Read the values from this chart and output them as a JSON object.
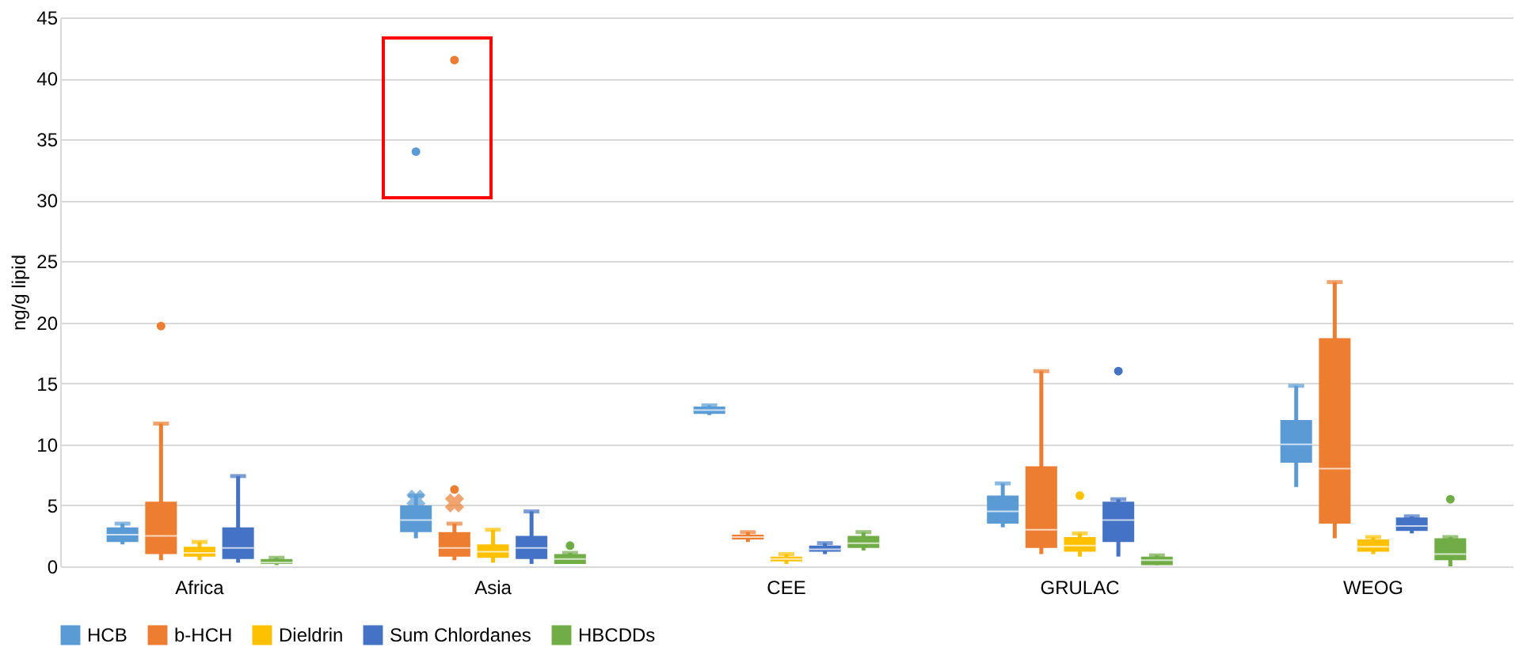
{
  "chart_data": {
    "type": "box",
    "ylabel": "ng/g lipid",
    "categories": [
      "Africa",
      "Asia",
      "CEE",
      "GRULAC",
      "WEOG"
    ],
    "ylim": [
      0,
      45
    ],
    "yticks": [
      0,
      5,
      10,
      15,
      20,
      25,
      30,
      35,
      40,
      45
    ],
    "grid": "y",
    "legend": "bottom",
    "series": [
      {
        "name": "HCB",
        "color": "#5b9bd5",
        "boxes": [
          {
            "low": 1.8,
            "q1": 2.0,
            "median": 2.6,
            "q3": 3.2,
            "high": 3.5
          },
          {
            "low": 2.3,
            "q1": 2.8,
            "median": 3.8,
            "q3": 5.0,
            "high": 5.8,
            "mean": 5.5,
            "outliers": [
              34
            ]
          },
          {
            "low": 12.4,
            "q1": 12.5,
            "median": 12.8,
            "q3": 13.1,
            "high": 13.2
          },
          {
            "low": 3.2,
            "q1": 3.5,
            "median": 4.5,
            "q3": 5.8,
            "high": 6.8
          },
          {
            "low": 6.5,
            "q1": 8.5,
            "median": 10,
            "q3": 12,
            "high": 14.8
          }
        ]
      },
      {
        "name": "b-HCH",
        "color": "#ed7d31",
        "boxes": [
          {
            "low": 0.5,
            "q1": 1.0,
            "median": 2.5,
            "q3": 5.3,
            "high": 11.7,
            "outliers": [
              19.7
            ]
          },
          {
            "low": 0.5,
            "q1": 0.8,
            "median": 1.5,
            "q3": 2.8,
            "high": 3.5,
            "mean": 5.2,
            "outliers": [
              6.3,
              41.5
            ]
          },
          {
            "low": 2.0,
            "q1": 2.2,
            "median": 2.4,
            "q3": 2.6,
            "high": 2.8
          },
          {
            "low": 1.0,
            "q1": 1.5,
            "median": 3.0,
            "q3": 8.2,
            "high": 16
          },
          {
            "low": 2.3,
            "q1": 3.5,
            "median": 8,
            "q3": 18.7,
            "high": 23.3
          }
        ]
      },
      {
        "name": "Dieldrin",
        "color": "#ffc000",
        "boxes": [
          {
            "low": 0.5,
            "q1": 0.8,
            "median": 1.1,
            "q3": 1.6,
            "high": 2.0
          },
          {
            "low": 0.3,
            "q1": 0.7,
            "median": 1.2,
            "q3": 1.8,
            "high": 3.0
          },
          {
            "low": 0.2,
            "q1": 0.4,
            "median": 0.6,
            "q3": 0.8,
            "high": 1.0
          },
          {
            "low": 0.8,
            "q1": 1.2,
            "median": 1.7,
            "q3": 2.4,
            "high": 2.7,
            "outliers": [
              5.8
            ]
          },
          {
            "low": 1.0,
            "q1": 1.2,
            "median": 1.6,
            "q3": 2.2,
            "high": 2.4
          }
        ]
      },
      {
        "name": "Sum Chlordanes",
        "color": "#4472c4",
        "boxes": [
          {
            "low": 0.3,
            "q1": 0.6,
            "median": 1.5,
            "q3": 3.2,
            "high": 7.4
          },
          {
            "low": 0.2,
            "q1": 0.6,
            "median": 1.5,
            "q3": 2.5,
            "high": 4.5
          },
          {
            "low": 1.0,
            "q1": 1.2,
            "median": 1.4,
            "q3": 1.7,
            "high": 1.9
          },
          {
            "low": 0.8,
            "q1": 2.0,
            "median": 3.8,
            "q3": 5.3,
            "high": 5.5,
            "outliers": [
              16
            ]
          },
          {
            "low": 2.7,
            "q1": 2.9,
            "median": 3.3,
            "q3": 4.0,
            "high": 4.1
          }
        ]
      },
      {
        "name": "HBCDDs",
        "color": "#70ad47",
        "boxes": [
          {
            "low": 0.1,
            "q1": 0.2,
            "median": 0.3,
            "q3": 0.6,
            "high": 0.7
          },
          {
            "low": 0.2,
            "q1": 0.2,
            "median": 0.6,
            "q3": 1.0,
            "high": 1.1,
            "outliers": [
              1.7
            ]
          },
          {
            "low": 1.3,
            "q1": 1.5,
            "median": 1.9,
            "q3": 2.5,
            "high": 2.8
          },
          {
            "low": 0.1,
            "q1": 0.1,
            "median": 0.5,
            "q3": 0.8,
            "high": 0.9
          },
          {
            "low": 0.0,
            "q1": 0.5,
            "median": 1.0,
            "q3": 2.3,
            "high": 2.4,
            "outliers": [
              5.5
            ]
          }
        ]
      }
    ]
  }
}
